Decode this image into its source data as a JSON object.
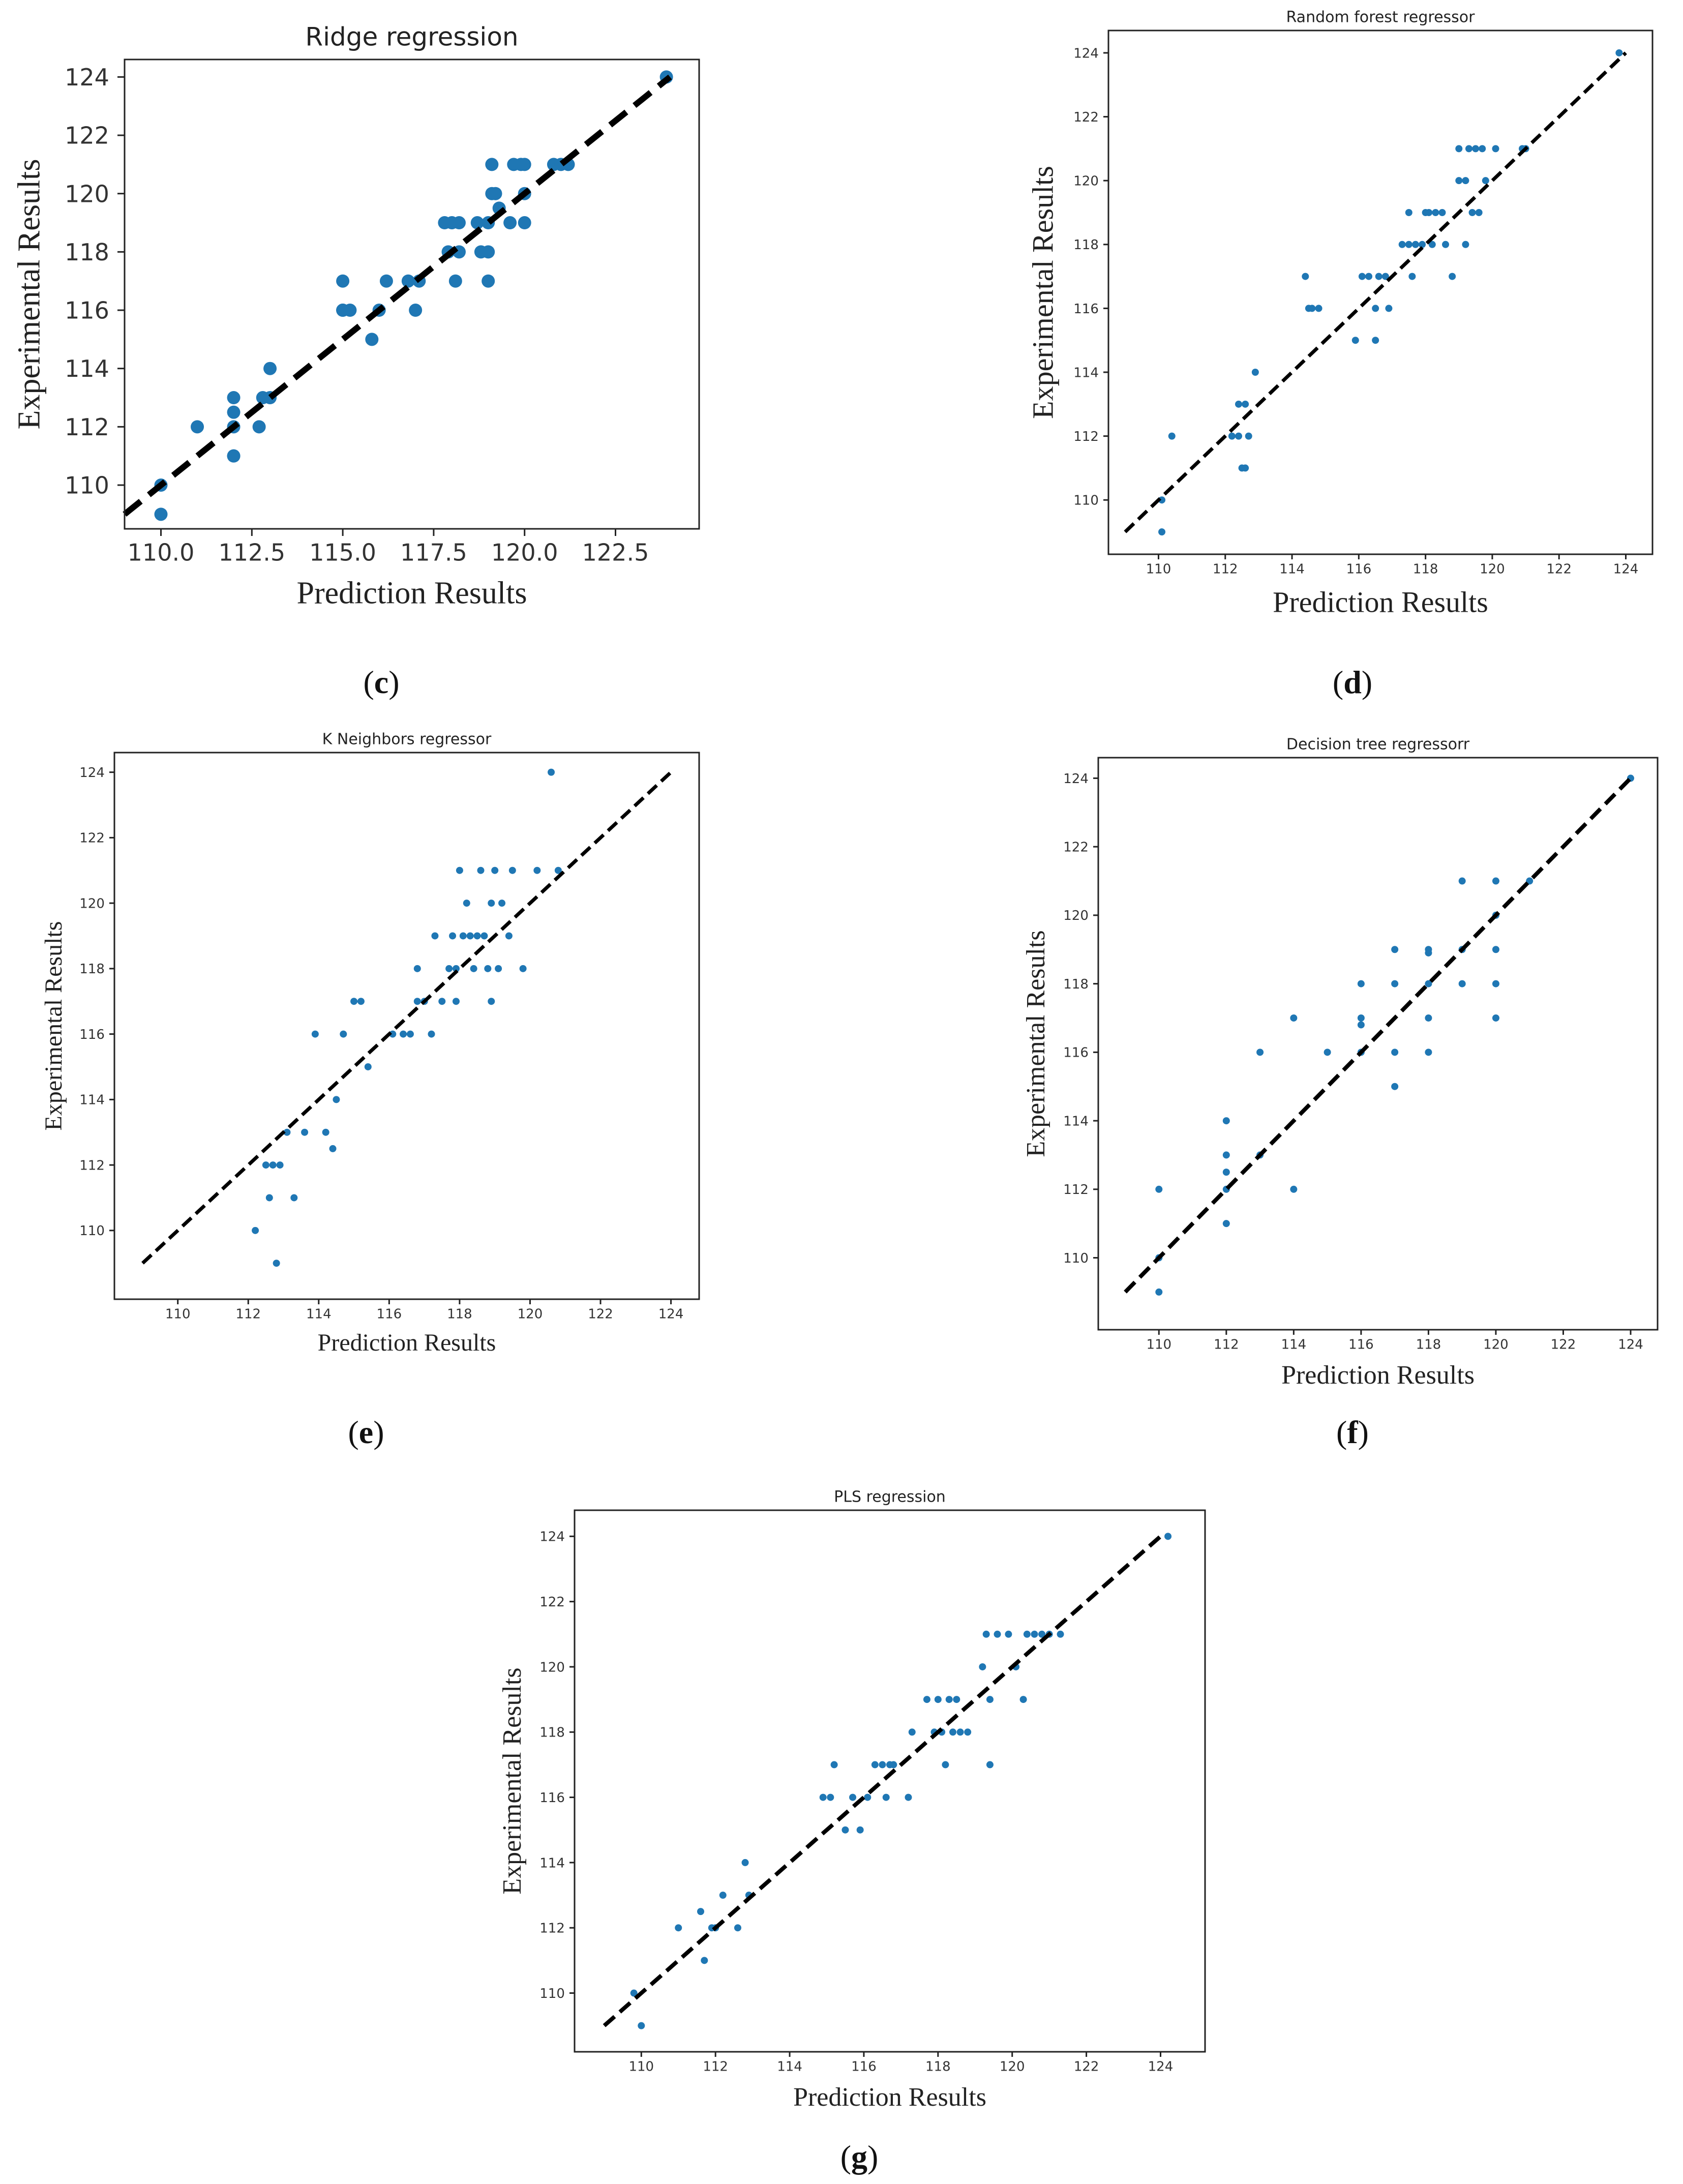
{
  "figure": {
    "captions": [
      "c",
      "d",
      "e",
      "f",
      "g"
    ]
  },
  "chart_data": [
    {
      "id": "c",
      "type": "scatter",
      "title": "Ridge regression",
      "xlabel": "Prediction Results",
      "ylabel": "Experimental Results",
      "xlim": [
        109,
        124.8
      ],
      "ylim": [
        108.5,
        124.6
      ],
      "xticks": [
        110.0,
        112.5,
        115.0,
        117.5,
        120.0,
        122.5
      ],
      "xtick_labels": [
        "110.0",
        "112.5",
        "115.0",
        "117.5",
        "120.0",
        "122.5"
      ],
      "yticks": [
        110,
        112,
        114,
        116,
        118,
        120,
        122,
        124
      ],
      "diagonal": [
        [
          109,
          109
        ],
        [
          124,
          124
        ]
      ],
      "marker_color": "#1f77b4",
      "line_color": "#000000",
      "points": [
        [
          110,
          109
        ],
        [
          110,
          110
        ],
        [
          111,
          112
        ],
        [
          112,
          111
        ],
        [
          112,
          111
        ],
        [
          112,
          112
        ],
        [
          112,
          112.5
        ],
        [
          112,
          113
        ],
        [
          112.7,
          112
        ],
        [
          112.8,
          113
        ],
        [
          113,
          113
        ],
        [
          113,
          114
        ],
        [
          115,
          116
        ],
        [
          115,
          116
        ],
        [
          115,
          117
        ],
        [
          115.2,
          116
        ],
        [
          115.8,
          115
        ],
        [
          116,
          116
        ],
        [
          116.2,
          117
        ],
        [
          116.8,
          117
        ],
        [
          117,
          116
        ],
        [
          117.1,
          117
        ],
        [
          117.8,
          119
        ],
        [
          117.9,
          118
        ],
        [
          118,
          119
        ],
        [
          118.1,
          117
        ],
        [
          118.2,
          118
        ],
        [
          118.2,
          119
        ],
        [
          118.7,
          119
        ],
        [
          118.8,
          118
        ],
        [
          119,
          118
        ],
        [
          119,
          119
        ],
        [
          119,
          117
        ],
        [
          119.1,
          120
        ],
        [
          119.1,
          121
        ],
        [
          119.2,
          120
        ],
        [
          119.3,
          119.5
        ],
        [
          119.6,
          119
        ],
        [
          119.7,
          121
        ],
        [
          119.9,
          121
        ],
        [
          120,
          120
        ],
        [
          120,
          119
        ],
        [
          120,
          121
        ],
        [
          120.8,
          121
        ],
        [
          121,
          121
        ],
        [
          121.2,
          121
        ],
        [
          123.9,
          124
        ]
      ]
    },
    {
      "id": "d",
      "type": "scatter",
      "title": "Random forest regressor",
      "xlabel": "Prediction Results",
      "ylabel": "Experimental Results",
      "xlim": [
        108.5,
        124.8
      ],
      "ylim": [
        108.3,
        124.7
      ],
      "xticks": [
        110,
        112,
        114,
        116,
        118,
        120,
        122,
        124
      ],
      "xtick_labels": [
        "110",
        "112",
        "114",
        "116",
        "118",
        "120",
        "122",
        "124"
      ],
      "yticks": [
        110,
        112,
        114,
        116,
        118,
        120,
        122,
        124
      ],
      "diagonal": [
        [
          109,
          109
        ],
        [
          124,
          124
        ]
      ],
      "marker_color": "#1f77b4",
      "line_color": "#000000",
      "points": [
        [
          110.1,
          109
        ],
        [
          110.1,
          110
        ],
        [
          110.4,
          112
        ],
        [
          112.2,
          112
        ],
        [
          112.4,
          112
        ],
        [
          112.4,
          113
        ],
        [
          112.5,
          111
        ],
        [
          112.6,
          113
        ],
        [
          112.6,
          111
        ],
        [
          112.7,
          112
        ],
        [
          112.9,
          114
        ],
        [
          114.4,
          117
        ],
        [
          114.5,
          116
        ],
        [
          114.6,
          116
        ],
        [
          114.8,
          116
        ],
        [
          115.9,
          115
        ],
        [
          116.1,
          117
        ],
        [
          116.3,
          117
        ],
        [
          116.5,
          116
        ],
        [
          116.5,
          115
        ],
        [
          116.6,
          117
        ],
        [
          116.8,
          117
        ],
        [
          116.9,
          116
        ],
        [
          117.3,
          118
        ],
        [
          117.5,
          118
        ],
        [
          117.5,
          119
        ],
        [
          117.6,
          117
        ],
        [
          117.7,
          118
        ],
        [
          117.9,
          118
        ],
        [
          118,
          119
        ],
        [
          118.1,
          119
        ],
        [
          118.2,
          118
        ],
        [
          118.3,
          119
        ],
        [
          118.5,
          119
        ],
        [
          118.6,
          118
        ],
        [
          118.8,
          117
        ],
        [
          119,
          121
        ],
        [
          119,
          120
        ],
        [
          119.2,
          120
        ],
        [
          119.2,
          118
        ],
        [
          119.3,
          121
        ],
        [
          119.4,
          119
        ],
        [
          119.5,
          121
        ],
        [
          119.6,
          119
        ],
        [
          119.7,
          121
        ],
        [
          119.8,
          120
        ],
        [
          120.1,
          121
        ],
        [
          120.9,
          121
        ],
        [
          121,
          121
        ],
        [
          123.8,
          124
        ]
      ]
    },
    {
      "id": "e",
      "type": "scatter",
      "title": "K Neighbors regressor",
      "xlabel": "Prediction Results",
      "ylabel": "Experimental Results",
      "xlim": [
        108.2,
        124.8
      ],
      "ylim": [
        107.9,
        124.6
      ],
      "xticks": [
        110,
        112,
        114,
        116,
        118,
        120,
        122,
        124
      ],
      "xtick_labels": [
        "110",
        "112",
        "114",
        "116",
        "118",
        "120",
        "122",
        "124"
      ],
      "yticks": [
        110,
        112,
        114,
        116,
        118,
        120,
        122,
        124
      ],
      "diagonal": [
        [
          109,
          109
        ],
        [
          124,
          124
        ]
      ],
      "marker_color": "#1f77b4",
      "line_color": "#000000",
      "points": [
        [
          112.2,
          110
        ],
        [
          112.5,
          112
        ],
        [
          112.6,
          111
        ],
        [
          112.7,
          112
        ],
        [
          112.8,
          109
        ],
        [
          112.9,
          112
        ],
        [
          113.1,
          113
        ],
        [
          113.3,
          111
        ],
        [
          113.6,
          113
        ],
        [
          113.9,
          116
        ],
        [
          114.2,
          113
        ],
        [
          114.4,
          112.5
        ],
        [
          114.5,
          114
        ],
        [
          114.7,
          116
        ],
        [
          115,
          117
        ],
        [
          115.2,
          117
        ],
        [
          115.4,
          115
        ],
        [
          116.1,
          116
        ],
        [
          116.4,
          116
        ],
        [
          116.6,
          116
        ],
        [
          116.8,
          117
        ],
        [
          116.8,
          118
        ],
        [
          117,
          117
        ],
        [
          117.2,
          116
        ],
        [
          117.3,
          119
        ],
        [
          117.5,
          117
        ],
        [
          117.7,
          118
        ],
        [
          117.8,
          119
        ],
        [
          117.9,
          118
        ],
        [
          117.9,
          117
        ],
        [
          118,
          121
        ],
        [
          118.1,
          119
        ],
        [
          118.2,
          120
        ],
        [
          118.3,
          119
        ],
        [
          118.4,
          118
        ],
        [
          118.5,
          119
        ],
        [
          118.6,
          121
        ],
        [
          118.7,
          119
        ],
        [
          118.8,
          118
        ],
        [
          118.9,
          120
        ],
        [
          118.9,
          117
        ],
        [
          119,
          121
        ],
        [
          119.1,
          118
        ],
        [
          119.2,
          120
        ],
        [
          119.4,
          119
        ],
        [
          119.5,
          121
        ],
        [
          119.8,
          118
        ],
        [
          120.2,
          121
        ],
        [
          120.6,
          124
        ],
        [
          120.8,
          121
        ]
      ]
    },
    {
      "id": "f",
      "type": "scatter",
      "title": "Decision tree regressorr",
      "xlabel": "Prediction Results",
      "ylabel": "Experimental Results",
      "xlim": [
        108.2,
        124.8
      ],
      "ylim": [
        107.9,
        124.6
      ],
      "xticks": [
        110,
        112,
        114,
        116,
        118,
        120,
        122,
        124
      ],
      "xtick_labels": [
        "110",
        "112",
        "114",
        "116",
        "118",
        "120",
        "122",
        "124"
      ],
      "yticks": [
        110,
        112,
        114,
        116,
        118,
        120,
        122,
        124
      ],
      "diagonal": [
        [
          109,
          109
        ],
        [
          124,
          124
        ]
      ],
      "marker_color": "#1f77b4",
      "line_color": "#000000",
      "points": [
        [
          110,
          109
        ],
        [
          110,
          110
        ],
        [
          110,
          112
        ],
        [
          112,
          111
        ],
        [
          112,
          112
        ],
        [
          112,
          112.5
        ],
        [
          112,
          113
        ],
        [
          112,
          114
        ],
        [
          113,
          113
        ],
        [
          113,
          116
        ],
        [
          114,
          112
        ],
        [
          114,
          117
        ],
        [
          115,
          116
        ],
        [
          116,
          116
        ],
        [
          116,
          117
        ],
        [
          116,
          116.8
        ],
        [
          116,
          118
        ],
        [
          117,
          115
        ],
        [
          117,
          116
        ],
        [
          117,
          118
        ],
        [
          117,
          119
        ],
        [
          118,
          116
        ],
        [
          118,
          117
        ],
        [
          118,
          118
        ],
        [
          118,
          119
        ],
        [
          118,
          118.9
        ],
        [
          119,
          118
        ],
        [
          119,
          119
        ],
        [
          119,
          121
        ],
        [
          120,
          117
        ],
        [
          120,
          118
        ],
        [
          120,
          119
        ],
        [
          120,
          120
        ],
        [
          120,
          121
        ],
        [
          121,
          121
        ],
        [
          124,
          124
        ]
      ]
    },
    {
      "id": "g",
      "type": "scatter",
      "title": "PLS regression",
      "xlabel": "Prediction Results",
      "ylabel": "Experimental Results",
      "xlim": [
        108.2,
        125.2
      ],
      "ylim": [
        108.2,
        124.8
      ],
      "xticks": [
        110,
        112,
        114,
        116,
        118,
        120,
        122,
        124
      ],
      "xtick_labels": [
        "110",
        "112",
        "114",
        "116",
        "118",
        "120",
        "122",
        "124"
      ],
      "yticks": [
        110,
        112,
        114,
        116,
        118,
        120,
        122,
        124
      ],
      "diagonal": [
        [
          109,
          109
        ],
        [
          124,
          124
        ]
      ],
      "marker_color": "#1f77b4",
      "line_color": "#000000",
      "points": [
        [
          109.8,
          110
        ],
        [
          110,
          109
        ],
        [
          111,
          112
        ],
        [
          111.6,
          112.5
        ],
        [
          111.7,
          111
        ],
        [
          111.9,
          112
        ],
        [
          112,
          112
        ],
        [
          112.2,
          113
        ],
        [
          112.6,
          112
        ],
        [
          112.8,
          114
        ],
        [
          112.9,
          113
        ],
        [
          114.9,
          116
        ],
        [
          115.1,
          116
        ],
        [
          115.2,
          117
        ],
        [
          115.5,
          115
        ],
        [
          115.7,
          116
        ],
        [
          115.9,
          115
        ],
        [
          116.1,
          116
        ],
        [
          116.3,
          117
        ],
        [
          116.5,
          117
        ],
        [
          116.6,
          116
        ],
        [
          116.7,
          117
        ],
        [
          116.8,
          117
        ],
        [
          117.2,
          116
        ],
        [
          117.3,
          118
        ],
        [
          117.7,
          119
        ],
        [
          117.9,
          118
        ],
        [
          118,
          119
        ],
        [
          118.1,
          118
        ],
        [
          118.2,
          117
        ],
        [
          118.3,
          119
        ],
        [
          118.4,
          118
        ],
        [
          118.5,
          119
        ],
        [
          118.6,
          118
        ],
        [
          118.8,
          118
        ],
        [
          119.2,
          120
        ],
        [
          119.3,
          121
        ],
        [
          119.4,
          119
        ],
        [
          119.4,
          117
        ],
        [
          119.6,
          121
        ],
        [
          119.9,
          121
        ],
        [
          120.1,
          120
        ],
        [
          120.3,
          119
        ],
        [
          120.4,
          121
        ],
        [
          120.6,
          121
        ],
        [
          120.8,
          121
        ],
        [
          121,
          121
        ],
        [
          121.3,
          121
        ],
        [
          124.2,
          124
        ]
      ]
    }
  ]
}
